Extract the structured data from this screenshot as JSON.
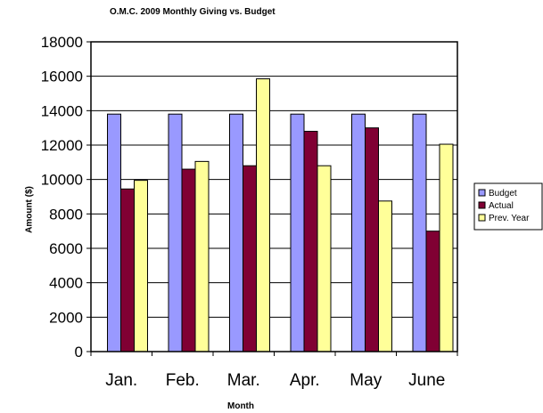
{
  "chart_data": {
    "type": "bar",
    "title": "O.M.C. 2009 Monthly Giving vs. Budget",
    "xlabel": "Month",
    "ylabel": "Amount ($)",
    "categories": [
      "Jan.",
      "Feb.",
      "Mar.",
      "Apr.",
      "May",
      "June"
    ],
    "ylim": [
      0,
      18000
    ],
    "yticks": [
      0,
      2000,
      4000,
      6000,
      8000,
      10000,
      12000,
      14000,
      16000,
      18000
    ],
    "grid": "horizontal",
    "legend_position": "right",
    "series": [
      {
        "name": "Budget",
        "color": "#9999ff",
        "values": [
          13800,
          13800,
          13800,
          13800,
          13800,
          13800
        ]
      },
      {
        "name": "Actual",
        "color": "#800033",
        "values": [
          9450,
          10600,
          10800,
          12800,
          13000,
          7000
        ]
      },
      {
        "name": "Prev. Year",
        "color": "#ffff99",
        "values": [
          9950,
          11050,
          15850,
          10800,
          8750,
          12050
        ]
      }
    ]
  }
}
